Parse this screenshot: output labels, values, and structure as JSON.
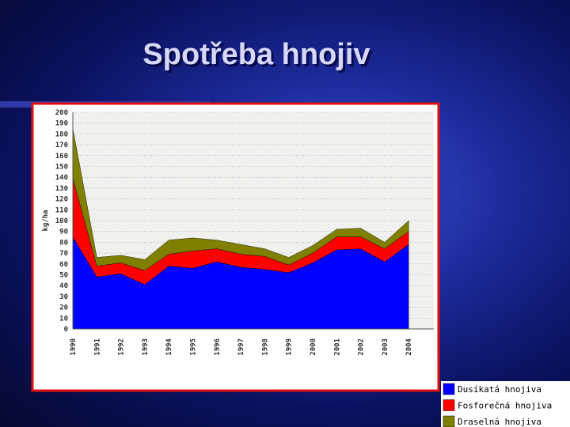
{
  "slide_title": "Spotřeba hnojiv",
  "chart_data": {
    "type": "stacked-area",
    "ylabel": "kg/ha",
    "categories": [
      "1990",
      "1991",
      "1992",
      "1993",
      "1994",
      "1995",
      "1996",
      "1997",
      "1998",
      "1999",
      "2000",
      "2001",
      "2002",
      "2003",
      "2004"
    ],
    "series": [
      {
        "name": "Dusíkatá hnojiva",
        "color": "#0000ff",
        "values": [
          85,
          48,
          51,
          41,
          58,
          56,
          62,
          57,
          55,
          52,
          61,
          73,
          74,
          62,
          78
        ]
      },
      {
        "name": "Fosforečná hnojiva",
        "color": "#ff0000",
        "values": [
          54,
          10,
          10,
          13,
          11,
          16,
          12,
          12,
          12,
          7,
          9,
          12,
          11,
          12,
          12
        ]
      },
      {
        "name": "Draselná hnojiva",
        "color": "#808000",
        "values": [
          46,
          8,
          7,
          10,
          13,
          12,
          8,
          9,
          7,
          7,
          7,
          7,
          8,
          6,
          10
        ]
      }
    ],
    "ylim": [
      0,
      200
    ],
    "yticks": [
      0,
      10,
      20,
      30,
      40,
      50,
      60,
      70,
      80,
      90,
      100,
      110,
      120,
      130,
      140,
      150,
      160,
      170,
      180,
      190,
      200
    ],
    "grid": true
  }
}
